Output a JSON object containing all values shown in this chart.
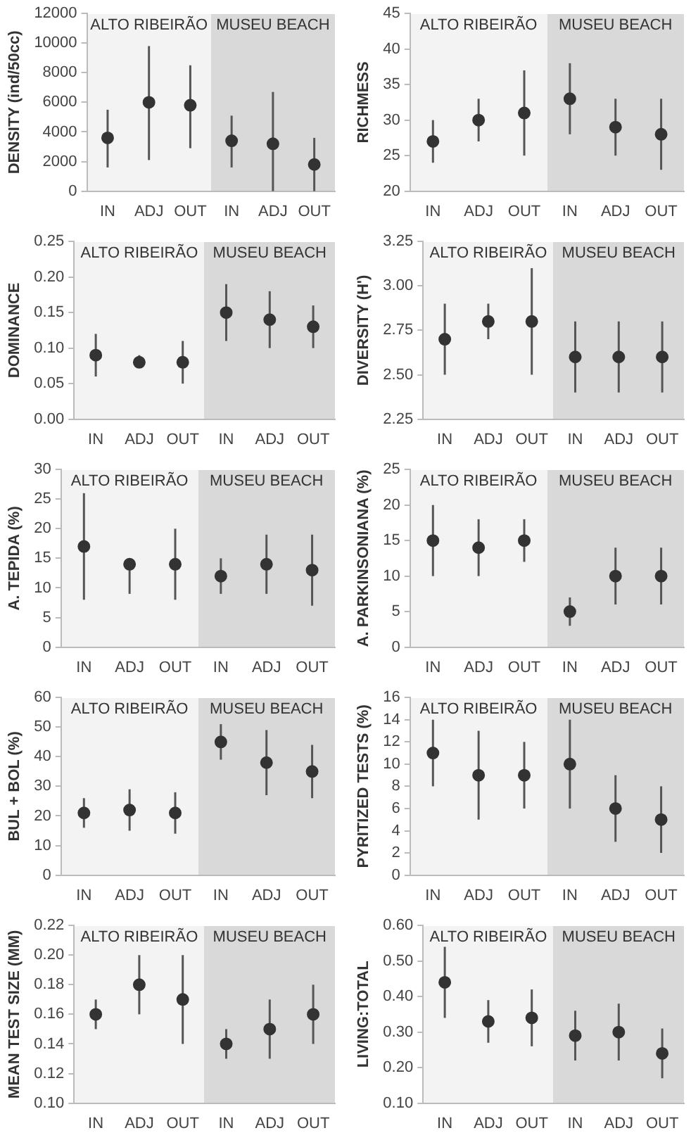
{
  "chart_data": [
    {
      "type": "scatter",
      "ylabel": "DENSITY (ind/50cc)",
      "categories": [
        "IN",
        "ADJ",
        "OUT",
        "IN",
        "ADJ",
        "OUT"
      ],
      "values": [
        3600,
        6000,
        5800,
        3400,
        3200,
        1800
      ],
      "errors": [
        [
          1600,
          5500
        ],
        [
          2100,
          9800
        ],
        [
          2900,
          8500
        ],
        [
          1600,
          5100
        ],
        [
          0,
          6700
        ],
        [
          0,
          3600
        ]
      ],
      "color": "#333333",
      "marker": "circle",
      "grid": false,
      "legend": false,
      "ylim": [
        0,
        12000
      ],
      "yticks": [
        0,
        2000,
        4000,
        6000,
        8000,
        10000,
        12000
      ],
      "annotations": [
        "ALTO RIBEIRÃO",
        "MUSEU BEACH"
      ]
    },
    {
      "type": "scatter",
      "ylabel": "RICHMESS",
      "categories": [
        "IN",
        "ADJ",
        "OUT",
        "IN",
        "ADJ",
        "OUT"
      ],
      "values": [
        27,
        30,
        31,
        33,
        29,
        28
      ],
      "errors": [
        [
          24,
          30
        ],
        [
          27,
          33
        ],
        [
          25,
          37
        ],
        [
          28,
          38
        ],
        [
          25,
          33
        ],
        [
          23,
          33
        ]
      ],
      "color": "#333333",
      "marker": "circle",
      "grid": false,
      "legend": false,
      "ylim": [
        20,
        45
      ],
      "yticks": [
        20,
        25,
        30,
        35,
        40,
        45
      ],
      "annotations": [
        "ALTO RIBEIRÃO",
        "MUSEU BEACH"
      ]
    },
    {
      "type": "scatter",
      "ylabel": "DOMINANCE",
      "categories": [
        "IN",
        "ADJ",
        "OUT",
        "IN",
        "ADJ",
        "OUT"
      ],
      "values": [
        0.09,
        0.08,
        0.08,
        0.15,
        0.14,
        0.13
      ],
      "errors": [
        [
          0.06,
          0.12
        ],
        [
          0.075,
          0.09
        ],
        [
          0.05,
          0.11
        ],
        [
          0.11,
          0.19
        ],
        [
          0.1,
          0.18
        ],
        [
          0.1,
          0.16
        ]
      ],
      "color": "#333333",
      "marker": "circle",
      "grid": false,
      "legend": false,
      "ylim": [
        0,
        0.25
      ],
      "yticks": [
        {
          "value": 0,
          "label": "0.00"
        },
        {
          "value": 0.05,
          "label": "0.05"
        },
        {
          "value": 0.1,
          "label": "0.10"
        },
        {
          "value": 0.15,
          "label": "0.15"
        },
        {
          "value": 0.2,
          "label": "0.20"
        },
        {
          "value": 0.25,
          "label": "0.25"
        }
      ],
      "annotations": [
        "ALTO RIBEIRÃO",
        "MUSEU BEACH"
      ]
    },
    {
      "type": "scatter",
      "ylabel": "DIVERSITY (H')",
      "categories": [
        "IN",
        "ADJ",
        "OUT",
        "IN",
        "ADJ",
        "OUT"
      ],
      "values": [
        2.7,
        2.8,
        2.8,
        2.6,
        2.6,
        2.6
      ],
      "errors": [
        [
          2.5,
          2.9
        ],
        [
          2.7,
          2.9
        ],
        [
          2.5,
          3.1
        ],
        [
          2.4,
          2.8
        ],
        [
          2.4,
          2.8
        ],
        [
          2.4,
          2.8
        ]
      ],
      "color": "#333333",
      "marker": "circle",
      "grid": false,
      "legend": false,
      "ylim": [
        2.25,
        3.25
      ],
      "yticks": [
        2.25,
        {
          "value": 2.5,
          "label": "2.50"
        },
        2.75,
        {
          "value": 3,
          "label": "3.00"
        },
        3.25
      ],
      "annotations": [
        "ALTO RIBEIRÃO",
        "MUSEU BEACH"
      ]
    },
    {
      "type": "scatter",
      "ylabel": "A. TEPIDA (%)",
      "categories": [
        "IN",
        "ADJ",
        "OUT",
        "IN",
        "ADJ",
        "OUT"
      ],
      "values": [
        17,
        14,
        14,
        12,
        14,
        13
      ],
      "errors": [
        [
          8,
          26
        ],
        [
          9,
          14
        ],
        [
          8,
          20
        ],
        [
          9,
          15
        ],
        [
          9,
          19
        ],
        [
          7,
          19
        ]
      ],
      "color": "#333333",
      "marker": "circle",
      "grid": false,
      "legend": false,
      "ylim": [
        0,
        30
      ],
      "yticks": [
        0,
        5,
        10,
        15,
        20,
        25,
        30
      ],
      "annotations": [
        "ALTO RIBEIRÃO",
        "MUSEU BEACH"
      ]
    },
    {
      "type": "scatter",
      "ylabel": "A. PARKINSONIANA (%)",
      "categories": [
        "IN",
        "ADJ",
        "OUT",
        "IN",
        "ADJ",
        "OUT"
      ],
      "values": [
        15,
        14,
        15,
        5,
        10,
        10
      ],
      "errors": [
        [
          10,
          20
        ],
        [
          10,
          18
        ],
        [
          12,
          18
        ],
        [
          3,
          7
        ],
        [
          6,
          14
        ],
        [
          6,
          14
        ]
      ],
      "color": "#333333",
      "marker": "circle",
      "grid": false,
      "legend": false,
      "ylim": [
        0,
        25
      ],
      "yticks": [
        0,
        5,
        10,
        15,
        20,
        25
      ],
      "annotations": [
        "ALTO RIBEIRÃO",
        "MUSEU BEACH"
      ]
    },
    {
      "type": "scatter",
      "ylabel": "BUL + BOL (%)",
      "categories": [
        "IN",
        "ADJ",
        "OUT",
        "IN",
        "ADJ",
        "OUT"
      ],
      "values": [
        21,
        22,
        21,
        45,
        38,
        35
      ],
      "errors": [
        [
          16,
          26
        ],
        [
          15,
          29
        ],
        [
          14,
          28
        ],
        [
          39,
          51
        ],
        [
          27,
          49
        ],
        [
          26,
          44
        ]
      ],
      "color": "#333333",
      "marker": "circle",
      "grid": false,
      "legend": false,
      "ylim": [
        0,
        60
      ],
      "yticks": [
        0,
        10,
        20,
        30,
        40,
        50,
        60
      ],
      "annotations": [
        "ALTO RIBEIRÃO",
        "MUSEU BEACH"
      ]
    },
    {
      "type": "scatter",
      "ylabel": "PYRITIZED TESTS (%)",
      "categories": [
        "IN",
        "ADJ",
        "OUT",
        "IN",
        "ADJ",
        "OUT"
      ],
      "values": [
        11,
        9,
        9,
        10,
        6,
        5
      ],
      "errors": [
        [
          8,
          14
        ],
        [
          5,
          13
        ],
        [
          6,
          12
        ],
        [
          6,
          14
        ],
        [
          3,
          9
        ],
        [
          2,
          8
        ]
      ],
      "color": "#333333",
      "marker": "circle",
      "grid": false,
      "legend": false,
      "ylim": [
        0,
        16
      ],
      "yticks": [
        0,
        2,
        4,
        6,
        8,
        10,
        12,
        14,
        16
      ],
      "annotations": [
        "ALTO RIBEIRÃO",
        "MUSEU BEACH"
      ]
    },
    {
      "type": "scatter",
      "ylabel": "MEAN TEST SIZE (MM)",
      "categories": [
        "IN",
        "ADJ",
        "OUT",
        "IN",
        "ADJ",
        "OUT"
      ],
      "values": [
        0.16,
        0.18,
        0.17,
        0.14,
        0.15,
        0.16
      ],
      "errors": [
        [
          0.15,
          0.17
        ],
        [
          0.16,
          0.2
        ],
        [
          0.14,
          0.2
        ],
        [
          0.13,
          0.15
        ],
        [
          0.13,
          0.17
        ],
        [
          0.14,
          0.18
        ]
      ],
      "color": "#333333",
      "marker": "circle",
      "grid": false,
      "legend": false,
      "ylim": [
        0.1,
        0.22
      ],
      "yticks": [
        {
          "value": 0.1,
          "label": "0.10"
        },
        {
          "value": 0.12,
          "label": "0.12"
        },
        {
          "value": 0.14,
          "label": "0.14"
        },
        {
          "value": 0.16,
          "label": "0.16"
        },
        {
          "value": 0.18,
          "label": "0.18"
        },
        {
          "value": 0.2,
          "label": "0.20"
        },
        {
          "value": 0.22,
          "label": "0.22"
        }
      ],
      "annotations": [
        "ALTO RIBEIRÃO",
        "MUSEU BEACH"
      ]
    },
    {
      "type": "scatter",
      "ylabel": "LIVING:TOTAL",
      "categories": [
        "IN",
        "ADJ",
        "OUT",
        "IN",
        "ADJ",
        "OUT"
      ],
      "values": [
        0.44,
        0.33,
        0.34,
        0.29,
        0.3,
        0.24
      ],
      "errors": [
        [
          0.34,
          0.54
        ],
        [
          0.27,
          0.39
        ],
        [
          0.26,
          0.42
        ],
        [
          0.22,
          0.36
        ],
        [
          0.22,
          0.38
        ],
        [
          0.17,
          0.31
        ]
      ],
      "color": "#333333",
      "marker": "circle",
      "grid": false,
      "legend": false,
      "ylim": [
        0.1,
        0.6
      ],
      "yticks": [
        {
          "value": 0.1,
          "label": "0.10"
        },
        {
          "value": 0.2,
          "label": "0.20"
        },
        {
          "value": 0.3,
          "label": "0.30"
        },
        {
          "value": 0.4,
          "label": "0.40"
        },
        {
          "value": 0.5,
          "label": "0.50"
        },
        {
          "value": 0.6,
          "label": "0.60"
        }
      ],
      "annotations": [
        "ALTO RIBEIRÃO",
        "MUSEU BEACH"
      ]
    }
  ]
}
